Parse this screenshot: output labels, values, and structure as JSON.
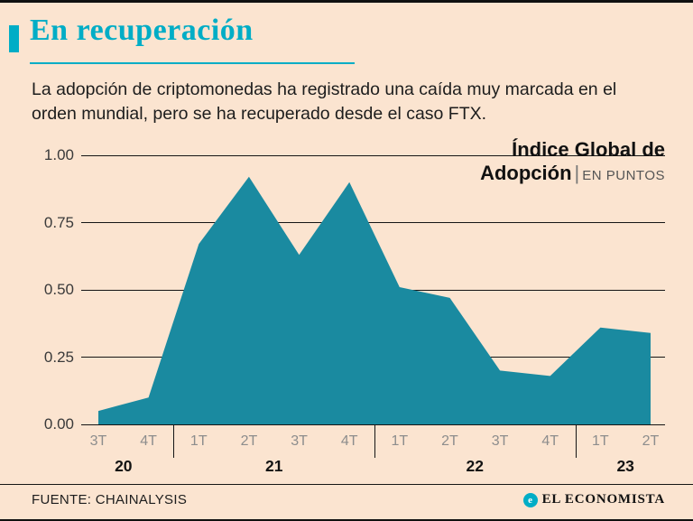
{
  "header": {
    "title": "En recuperación",
    "subtitle": "La adopción de criptomonedas ha registrado una caída muy marcada en el orden mundial, pero se ha recuperado desde el caso FTX."
  },
  "annotation": {
    "line1": "Índice Global de",
    "line2_bold": "Adopción",
    "divider": "|",
    "units": "EN PUNTOS"
  },
  "footer": {
    "source": "FUENTE: CHAINALYSIS",
    "brand": "EL ECONOMISTA",
    "brand_glyph": "e"
  },
  "colors": {
    "background": "#fbe4d0",
    "accent": "#00adc6",
    "area": "#1a8aa0",
    "grid": "#151515"
  },
  "chart_data": {
    "type": "area",
    "title": "Índice Global de Adopción",
    "units": "EN PUNTOS",
    "x": [
      "3T",
      "4T",
      "1T",
      "2T",
      "3T",
      "4T",
      "1T",
      "2T",
      "3T",
      "4T",
      "1T",
      "2T"
    ],
    "year_groups": [
      {
        "label": "20",
        "quarters": 2
      },
      {
        "label": "21",
        "quarters": 4
      },
      {
        "label": "22",
        "quarters": 4
      },
      {
        "label": "23",
        "quarters": 2
      }
    ],
    "values": [
      0.05,
      0.1,
      0.67,
      0.92,
      0.63,
      0.9,
      0.51,
      0.47,
      0.2,
      0.18,
      0.36,
      0.34
    ],
    "ylim": [
      0,
      1
    ],
    "yticks": [
      0,
      0.25,
      0.5,
      0.75,
      1
    ],
    "ytick_labels": [
      "0.00",
      "0.25",
      "0.50",
      "0.75",
      "1.00"
    ],
    "grid": true,
    "legend": "none"
  }
}
